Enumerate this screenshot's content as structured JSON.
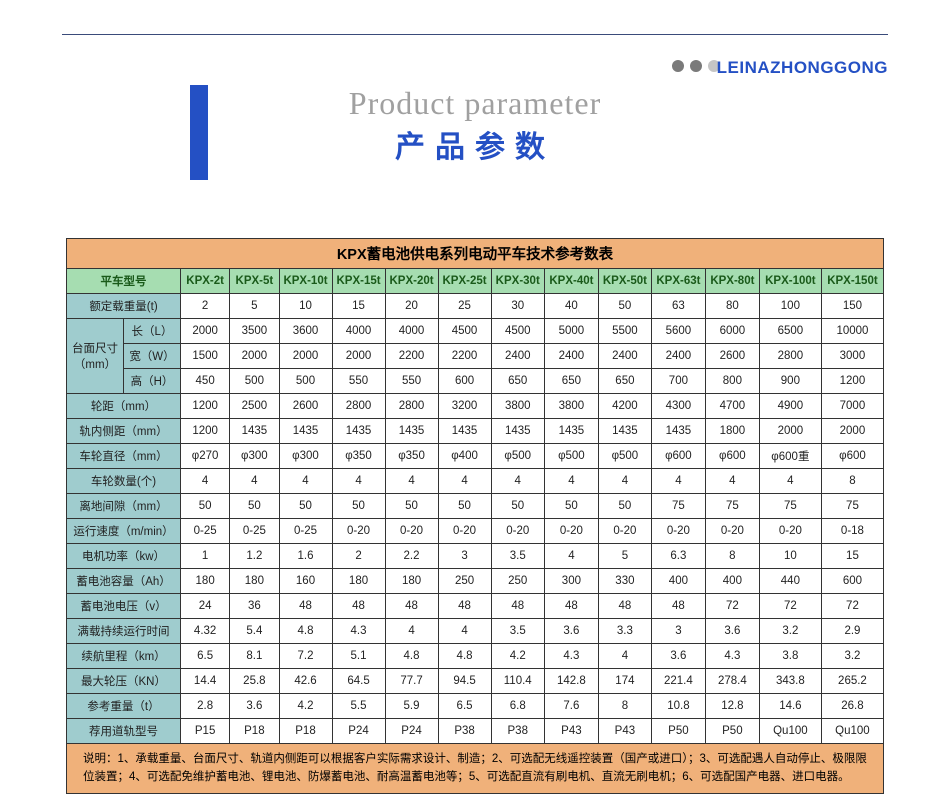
{
  "brand": "LEINAZHONGGONG",
  "title_en": "Product parameter",
  "title_cn": "产品参数",
  "table_title": "KPX蓄电池供电系列电动平车技术参考数表",
  "model_label": "平车型号",
  "models": [
    "KPX-2t",
    "KPX-5t",
    "KPX-10t",
    "KPX-15t",
    "KPX-20t",
    "KPX-25t",
    "KPX-30t",
    "KPX-40t",
    "KPX-50t",
    "KPX-63t",
    "KPX-80t",
    "KPX-100t",
    "KPX-150t"
  ],
  "dim_group": "台面尺寸（mm）",
  "rows": [
    {
      "label": "额定载重量(t)",
      "vals": [
        "2",
        "5",
        "10",
        "15",
        "20",
        "25",
        "30",
        "40",
        "50",
        "63",
        "80",
        "100",
        "150"
      ]
    },
    {
      "label": "长（L）",
      "vals": [
        "2000",
        "3500",
        "3600",
        "4000",
        "4000",
        "4500",
        "4500",
        "5000",
        "5500",
        "5600",
        "6000",
        "6500",
        "10000"
      ]
    },
    {
      "label": "宽（W）",
      "vals": [
        "1500",
        "2000",
        "2000",
        "2000",
        "2200",
        "2200",
        "2400",
        "2400",
        "2400",
        "2400",
        "2600",
        "2800",
        "3000"
      ]
    },
    {
      "label": "高（H）",
      "vals": [
        "450",
        "500",
        "500",
        "550",
        "550",
        "600",
        "650",
        "650",
        "650",
        "700",
        "800",
        "900",
        "1200"
      ]
    },
    {
      "label": "轮距（mm）",
      "vals": [
        "1200",
        "2500",
        "2600",
        "2800",
        "2800",
        "3200",
        "3800",
        "3800",
        "4200",
        "4300",
        "4700",
        "4900",
        "7000"
      ]
    },
    {
      "label": "轨内侧距（mm）",
      "vals": [
        "1200",
        "1435",
        "1435",
        "1435",
        "1435",
        "1435",
        "1435",
        "1435",
        "1435",
        "1435",
        "1800",
        "2000",
        "2000"
      ]
    },
    {
      "label": "车轮直径（mm）",
      "vals": [
        "φ270",
        "φ300",
        "φ300",
        "φ350",
        "φ350",
        "φ400",
        "φ500",
        "φ500",
        "φ500",
        "φ600",
        "φ600",
        "φ600重",
        "φ600"
      ]
    },
    {
      "label": "车轮数量(个)",
      "vals": [
        "4",
        "4",
        "4",
        "4",
        "4",
        "4",
        "4",
        "4",
        "4",
        "4",
        "4",
        "4",
        "8"
      ]
    },
    {
      "label": "离地间隙（mm）",
      "vals": [
        "50",
        "50",
        "50",
        "50",
        "50",
        "50",
        "50",
        "50",
        "50",
        "75",
        "75",
        "75",
        "75"
      ]
    },
    {
      "label": "运行速度（m/min）",
      "vals": [
        "0-25",
        "0-25",
        "0-25",
        "0-20",
        "0-20",
        "0-20",
        "0-20",
        "0-20",
        "0-20",
        "0-20",
        "0-20",
        "0-20",
        "0-18"
      ]
    },
    {
      "label": "电机功率（kw）",
      "vals": [
        "1",
        "1.2",
        "1.6",
        "2",
        "2.2",
        "3",
        "3.5",
        "4",
        "5",
        "6.3",
        "8",
        "10",
        "15"
      ]
    },
    {
      "label": "蓄电池容量（Ah）",
      "vals": [
        "180",
        "180",
        "160",
        "180",
        "180",
        "250",
        "250",
        "300",
        "330",
        "400",
        "400",
        "440",
        "600"
      ]
    },
    {
      "label": "蓄电池电压（v）",
      "vals": [
        "24",
        "36",
        "48",
        "48",
        "48",
        "48",
        "48",
        "48",
        "48",
        "48",
        "72",
        "72",
        "72"
      ]
    },
    {
      "label": "满载持续运行时间",
      "vals": [
        "4.32",
        "5.4",
        "4.8",
        "4.3",
        "4",
        "4",
        "3.5",
        "3.6",
        "3.3",
        "3",
        "3.6",
        "3.2",
        "2.9"
      ]
    },
    {
      "label": "续航里程（km）",
      "vals": [
        "6.5",
        "8.1",
        "7.2",
        "5.1",
        "4.8",
        "4.8",
        "4.2",
        "4.3",
        "4",
        "3.6",
        "4.3",
        "3.8",
        "3.2"
      ]
    },
    {
      "label": "最大轮压（KN）",
      "vals": [
        "14.4",
        "25.8",
        "42.6",
        "64.5",
        "77.7",
        "94.5",
        "110.4",
        "142.8",
        "174",
        "221.4",
        "278.4",
        "343.8",
        "265.2"
      ]
    },
    {
      "label": "参考重量（t）",
      "vals": [
        "2.8",
        "3.6",
        "4.2",
        "5.5",
        "5.9",
        "6.5",
        "6.8",
        "7.6",
        "8",
        "10.8",
        "12.8",
        "14.6",
        "26.8"
      ]
    },
    {
      "label": "荐用道轨型号",
      "vals": [
        "P15",
        "P18",
        "P18",
        "P24",
        "P24",
        "P38",
        "P38",
        "P43",
        "P43",
        "P50",
        "P50",
        "Qu100",
        "Qu100"
      ]
    }
  ],
  "notes": "说明：1、承载重量、台面尺寸、轨道内侧距可以根据客户实际需求设计、制造；2、可选配无线遥控装置（国产或进口）；3、可选配遇人自动停止、极限限位装置；4、可选配免维护蓄电池、锂电池、防爆蓄电池、耐高温蓄电池等；5、可选配直流有刷电机、直流无刷电机；6、可选配国产电器、进口电器。"
}
